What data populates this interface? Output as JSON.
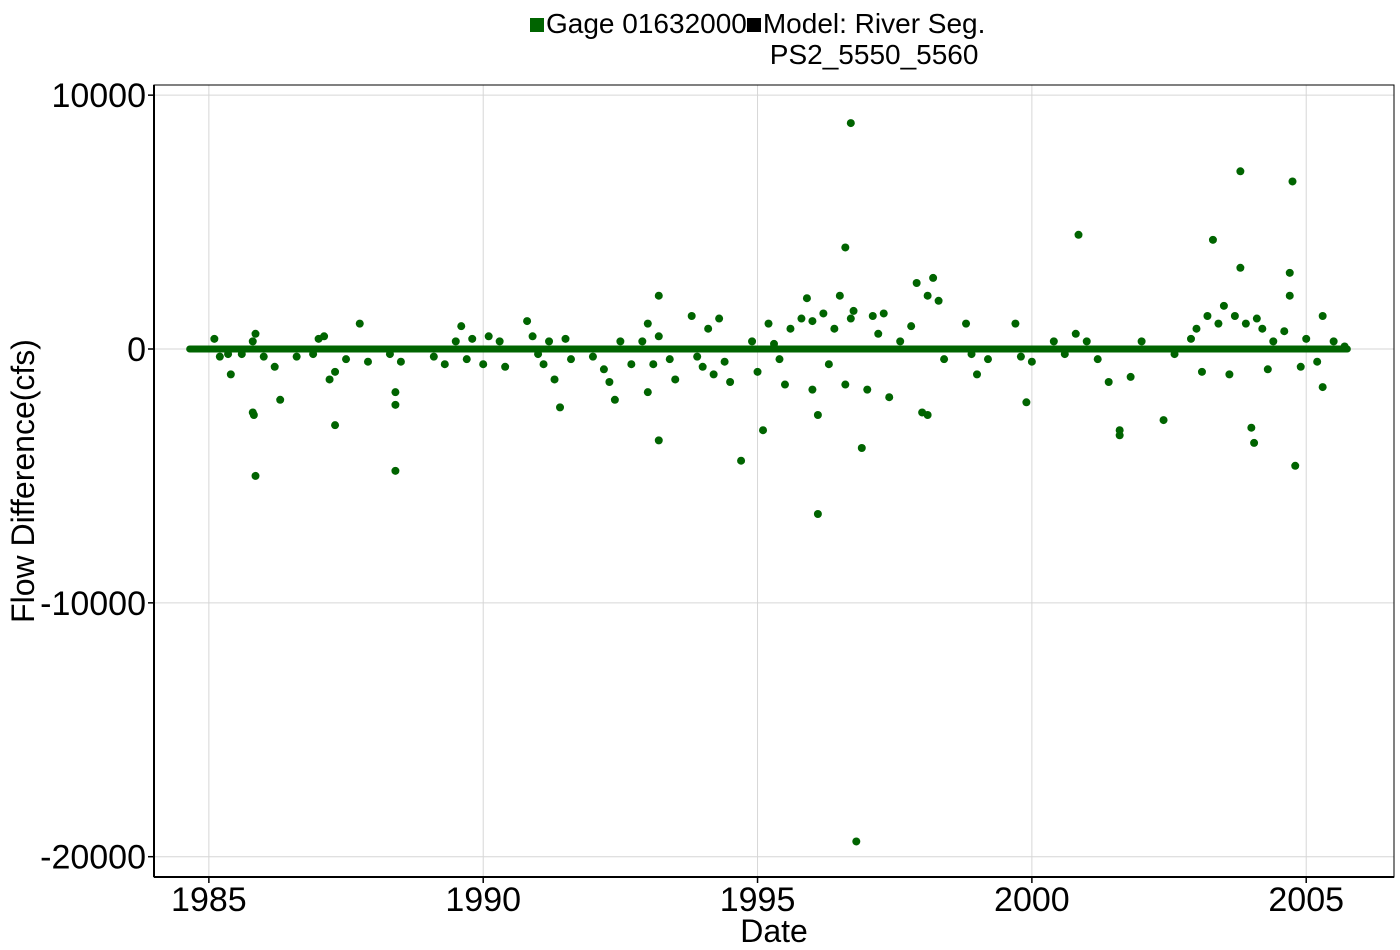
{
  "chart_data": {
    "type": "scatter",
    "title": "",
    "xlabel": "Date",
    "ylabel": "Flow Difference(cfs)",
    "xlim": [
      1984.0,
      2006.6
    ],
    "ylim": [
      -20800,
      10400
    ],
    "x_ticks": [
      1985,
      1990,
      1995,
      2000,
      2005
    ],
    "x_tick_labels": [
      "1985",
      "1990",
      "1995",
      "2000",
      "2005"
    ],
    "y_ticks": [
      10000,
      0,
      -10000,
      -20000
    ],
    "y_tick_labels": [
      "10000",
      "0",
      "-10000",
      "-20000"
    ],
    "grid": true,
    "legend_position": "top",
    "series": [
      {
        "name": "Gage 01632000",
        "color": "#006400",
        "baseline_x_range": [
          1984.65,
          2005.75
        ],
        "points": [
          [
            1985.1,
            400
          ],
          [
            1985.2,
            -300
          ],
          [
            1985.35,
            -200
          ],
          [
            1985.4,
            -1000
          ],
          [
            1985.6,
            -200
          ],
          [
            1985.8,
            300
          ],
          [
            1985.85,
            600
          ],
          [
            1985.8,
            -2500
          ],
          [
            1985.82,
            -2600
          ],
          [
            1985.85,
            -5000
          ],
          [
            1986.0,
            -300
          ],
          [
            1986.2,
            -700
          ],
          [
            1986.3,
            -2000
          ],
          [
            1986.6,
            -300
          ],
          [
            1986.9,
            -200
          ],
          [
            1987.0,
            400
          ],
          [
            1987.1,
            500
          ],
          [
            1987.2,
            -1200
          ],
          [
            1987.3,
            -900
          ],
          [
            1987.3,
            -3000
          ],
          [
            1987.5,
            -400
          ],
          [
            1987.75,
            1000
          ],
          [
            1987.9,
            -500
          ],
          [
            1988.3,
            -200
          ],
          [
            1988.4,
            -1700
          ],
          [
            1988.4,
            -2200
          ],
          [
            1988.4,
            -4800
          ],
          [
            1988.5,
            -500
          ],
          [
            1989.1,
            -300
          ],
          [
            1989.3,
            -600
          ],
          [
            1989.5,
            300
          ],
          [
            1989.6,
            900
          ],
          [
            1989.7,
            -400
          ],
          [
            1989.8,
            400
          ],
          [
            1990.0,
            -600
          ],
          [
            1990.1,
            500
          ],
          [
            1990.3,
            300
          ],
          [
            1990.4,
            -700
          ],
          [
            1990.8,
            1100
          ],
          [
            1990.9,
            500
          ],
          [
            1991.0,
            -200
          ],
          [
            1991.1,
            -600
          ],
          [
            1991.2,
            300
          ],
          [
            1991.3,
            -1200
          ],
          [
            1991.4,
            -2300
          ],
          [
            1991.5,
            400
          ],
          [
            1991.6,
            -400
          ],
          [
            1992.0,
            -300
          ],
          [
            1992.2,
            -800
          ],
          [
            1992.3,
            -1300
          ],
          [
            1992.4,
            -2000
          ],
          [
            1992.5,
            300
          ],
          [
            1992.7,
            -600
          ],
          [
            1992.9,
            300
          ],
          [
            1993.0,
            1000
          ],
          [
            1993.0,
            -1700
          ],
          [
            1993.1,
            -600
          ],
          [
            1993.2,
            500
          ],
          [
            1993.2,
            2100
          ],
          [
            1993.2,
            -3600
          ],
          [
            1993.4,
            -400
          ],
          [
            1993.5,
            -1200
          ],
          [
            1993.8,
            1300
          ],
          [
            1993.9,
            -300
          ],
          [
            1994.0,
            -700
          ],
          [
            1994.1,
            800
          ],
          [
            1994.2,
            -1000
          ],
          [
            1994.3,
            1200
          ],
          [
            1994.4,
            -500
          ],
          [
            1994.5,
            -1300
          ],
          [
            1994.7,
            -4400
          ],
          [
            1994.9,
            300
          ],
          [
            1995.0,
            -900
          ],
          [
            1995.1,
            -3200
          ],
          [
            1995.2,
            1000
          ],
          [
            1995.3,
            200
          ],
          [
            1995.4,
            -400
          ],
          [
            1995.5,
            -1400
          ],
          [
            1995.6,
            800
          ],
          [
            1995.8,
            1200
          ],
          [
            1995.9,
            2000
          ],
          [
            1996.0,
            1100
          ],
          [
            1996.0,
            -1600
          ],
          [
            1996.1,
            -2600
          ],
          [
            1996.1,
            -6500
          ],
          [
            1996.2,
            1400
          ],
          [
            1996.3,
            -600
          ],
          [
            1996.4,
            800
          ],
          [
            1996.5,
            2100
          ],
          [
            1996.6,
            4000
          ],
          [
            1996.6,
            -1400
          ],
          [
            1996.7,
            1200
          ],
          [
            1996.7,
            8900
          ],
          [
            1996.75,
            1500
          ],
          [
            1996.8,
            -19400
          ],
          [
            1996.9,
            -3900
          ],
          [
            1997.0,
            -1600
          ],
          [
            1997.1,
            1300
          ],
          [
            1997.2,
            600
          ],
          [
            1997.3,
            1400
          ],
          [
            1997.4,
            -1900
          ],
          [
            1997.6,
            300
          ],
          [
            1997.8,
            900
          ],
          [
            1997.9,
            2600
          ],
          [
            1998.0,
            -2500
          ],
          [
            1998.1,
            2100
          ],
          [
            1998.1,
            -2600
          ],
          [
            1998.2,
            2800
          ],
          [
            1998.3,
            1900
          ],
          [
            1998.4,
            -400
          ],
          [
            1998.8,
            1000
          ],
          [
            1998.9,
            -200
          ],
          [
            1999.0,
            -1000
          ],
          [
            1999.2,
            -400
          ],
          [
            1999.7,
            1000
          ],
          [
            1999.8,
            -300
          ],
          [
            1999.9,
            -2100
          ],
          [
            2000.0,
            -500
          ],
          [
            2000.4,
            300
          ],
          [
            2000.6,
            -200
          ],
          [
            2000.8,
            600
          ],
          [
            2000.85,
            4500
          ],
          [
            2001.0,
            300
          ],
          [
            2001.2,
            -400
          ],
          [
            2001.4,
            -1300
          ],
          [
            2001.6,
            -3200
          ],
          [
            2001.6,
            -3400
          ],
          [
            2001.8,
            -1100
          ],
          [
            2002.0,
            300
          ],
          [
            2002.4,
            -2800
          ],
          [
            2002.6,
            -200
          ],
          [
            2002.9,
            400
          ],
          [
            2003.0,
            800
          ],
          [
            2003.1,
            -900
          ],
          [
            2003.2,
            1300
          ],
          [
            2003.3,
            4300
          ],
          [
            2003.4,
            1000
          ],
          [
            2003.5,
            1700
          ],
          [
            2003.6,
            -1000
          ],
          [
            2003.7,
            1300
          ],
          [
            2003.8,
            3200
          ],
          [
            2003.8,
            7000
          ],
          [
            2003.9,
            1000
          ],
          [
            2004.0,
            -3100
          ],
          [
            2004.05,
            -3700
          ],
          [
            2004.1,
            1200
          ],
          [
            2004.2,
            800
          ],
          [
            2004.3,
            -800
          ],
          [
            2004.4,
            300
          ],
          [
            2004.6,
            700
          ],
          [
            2004.7,
            3000
          ],
          [
            2004.7,
            2100
          ],
          [
            2004.75,
            6600
          ],
          [
            2004.8,
            -4600
          ],
          [
            2004.9,
            -700
          ],
          [
            2005.0,
            400
          ],
          [
            2005.2,
            -500
          ],
          [
            2005.3,
            1300
          ],
          [
            2005.3,
            -1500
          ],
          [
            2005.5,
            300
          ],
          [
            2005.7,
            100
          ]
        ]
      },
      {
        "name": "Model: River Seg.\nPS2_5550_5560",
        "color": "#000000",
        "points": []
      }
    ]
  }
}
